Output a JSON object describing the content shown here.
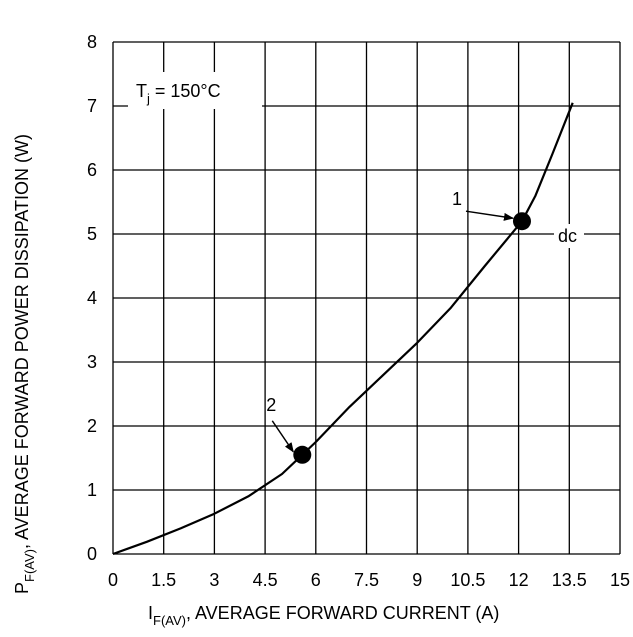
{
  "chart_data": {
    "type": "line",
    "xlabel": {
      "main": "I",
      "sub": "F(AV)",
      "rest": ", AVERAGE FORWARD CURRENT (A)"
    },
    "ylabel": {
      "main": "P",
      "sub": "F(AV)",
      "rest": ", AVERAGE FORWARD POWER DISSIPATION (W)"
    },
    "xlim": [
      0,
      15
    ],
    "ylim": [
      0,
      8
    ],
    "x_ticks": [
      0,
      1.5,
      3,
      4.5,
      6,
      7.5,
      9,
      10.5,
      12,
      13.5,
      15
    ],
    "x_tick_labels": [
      "0",
      "1.5",
      "3",
      "4.5",
      "6",
      "7.5",
      "9",
      "10.5",
      "12",
      "13.5",
      "15"
    ],
    "y_ticks": [
      0,
      1,
      2,
      3,
      4,
      5,
      6,
      7,
      8
    ],
    "y_tick_labels": [
      "0",
      "1",
      "2",
      "3",
      "4",
      "5",
      "6",
      "7",
      "8"
    ],
    "grid": true,
    "legend_box": {
      "main": "T",
      "sub": "j",
      "rest": " = 150°C"
    },
    "series": [
      {
        "label": "dc",
        "x": [
          0,
          1,
          2,
          3,
          4,
          5,
          5.6,
          6,
          7,
          8,
          9,
          10,
          11,
          12.1,
          12.5,
          13,
          13.6
        ],
        "y": [
          0,
          0.19,
          0.4,
          0.63,
          0.9,
          1.25,
          1.55,
          1.75,
          2.3,
          2.8,
          3.3,
          3.85,
          4.5,
          5.2,
          5.6,
          6.25,
          7.05
        ]
      }
    ],
    "markers": [
      {
        "label": "1",
        "x": 12.1,
        "y": 5.2
      },
      {
        "label": "2",
        "x": 5.6,
        "y": 1.55
      }
    ],
    "colors": {
      "line": "#000000",
      "grid": "#000000",
      "background": "#ffffff"
    }
  }
}
